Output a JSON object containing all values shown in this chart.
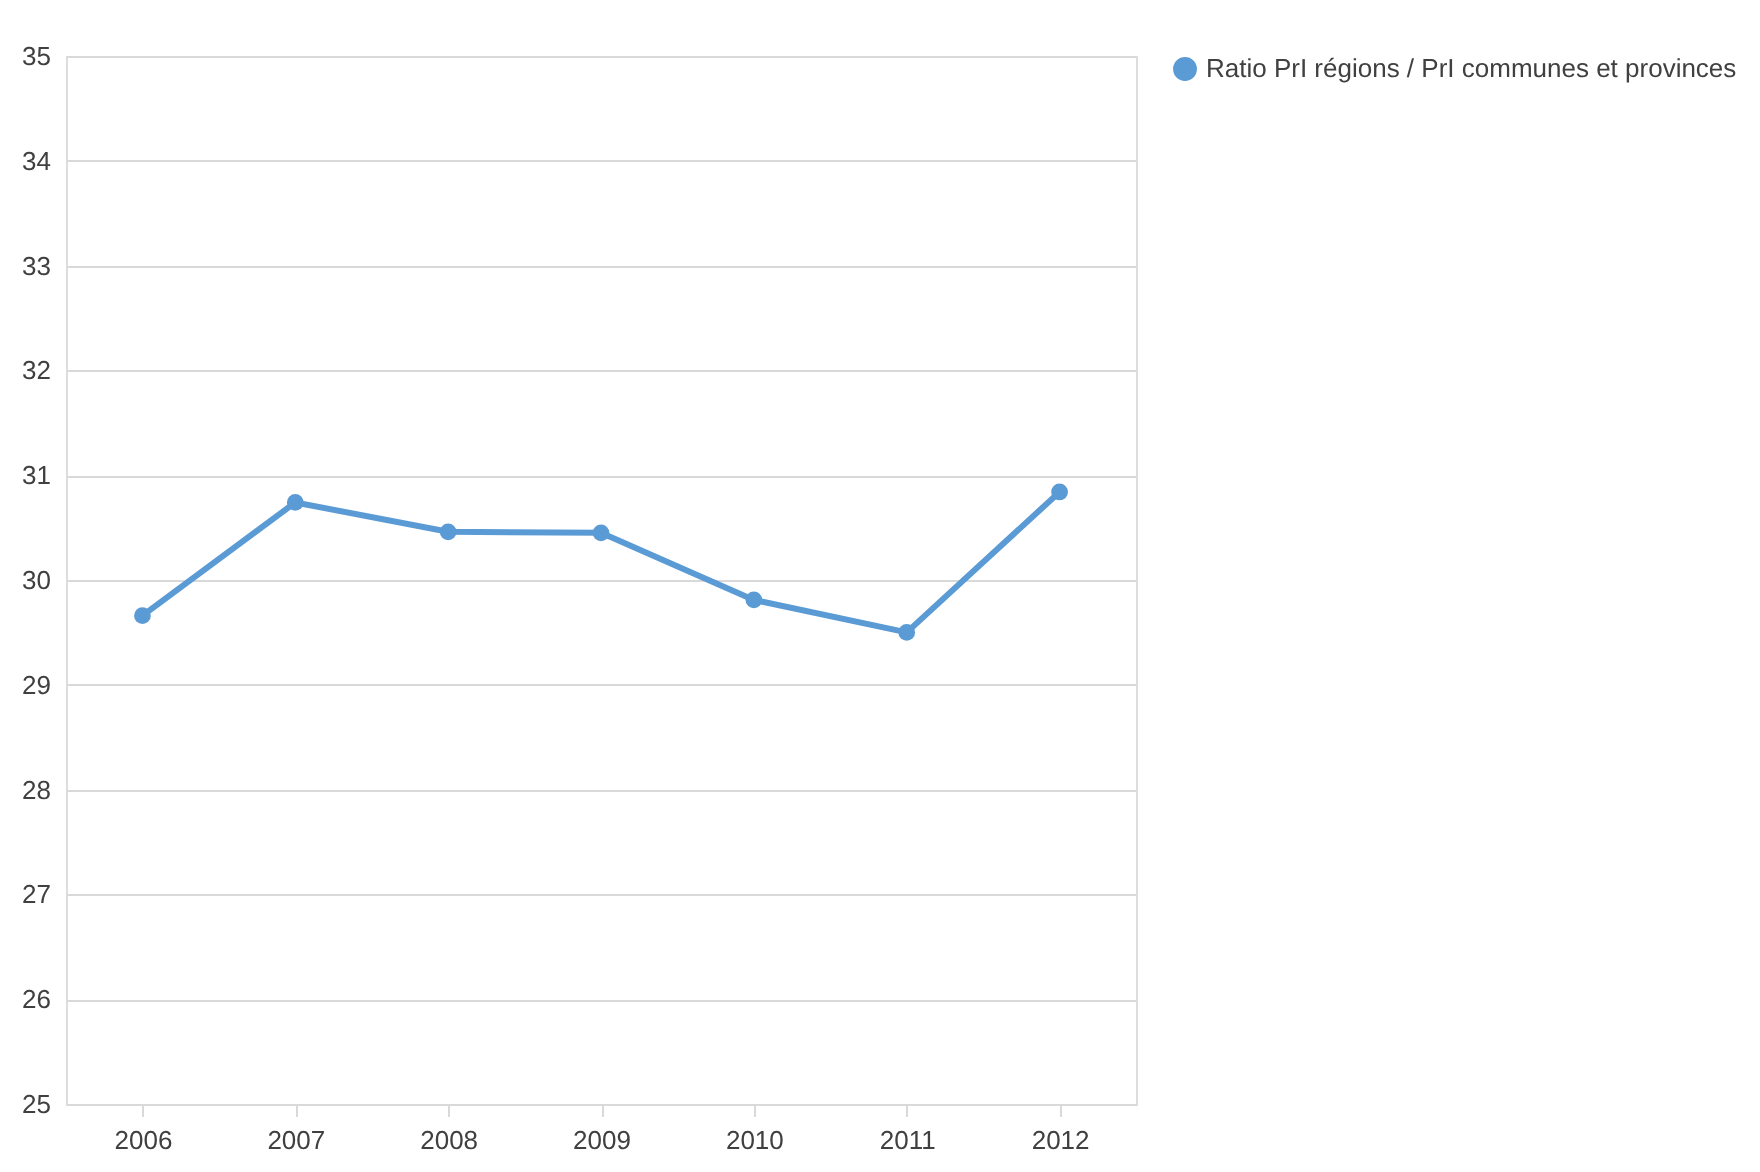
{
  "chart_data": {
    "type": "line",
    "categories": [
      "2006",
      "2007",
      "2008",
      "2009",
      "2010",
      "2011",
      "2012"
    ],
    "series": [
      {
        "name": "Ratio PrI régions / PrI communes et provinces",
        "color": "#5b9bd5",
        "values": [
          29.66,
          30.74,
          30.46,
          30.45,
          29.81,
          29.5,
          30.84
        ]
      }
    ],
    "ylim": [
      25,
      35
    ],
    "yticks": [
      25,
      26,
      27,
      28,
      29,
      30,
      31,
      32,
      33,
      34,
      35
    ],
    "grid": "y",
    "legend": "right",
    "marker": "circle",
    "line_style": "solid"
  }
}
